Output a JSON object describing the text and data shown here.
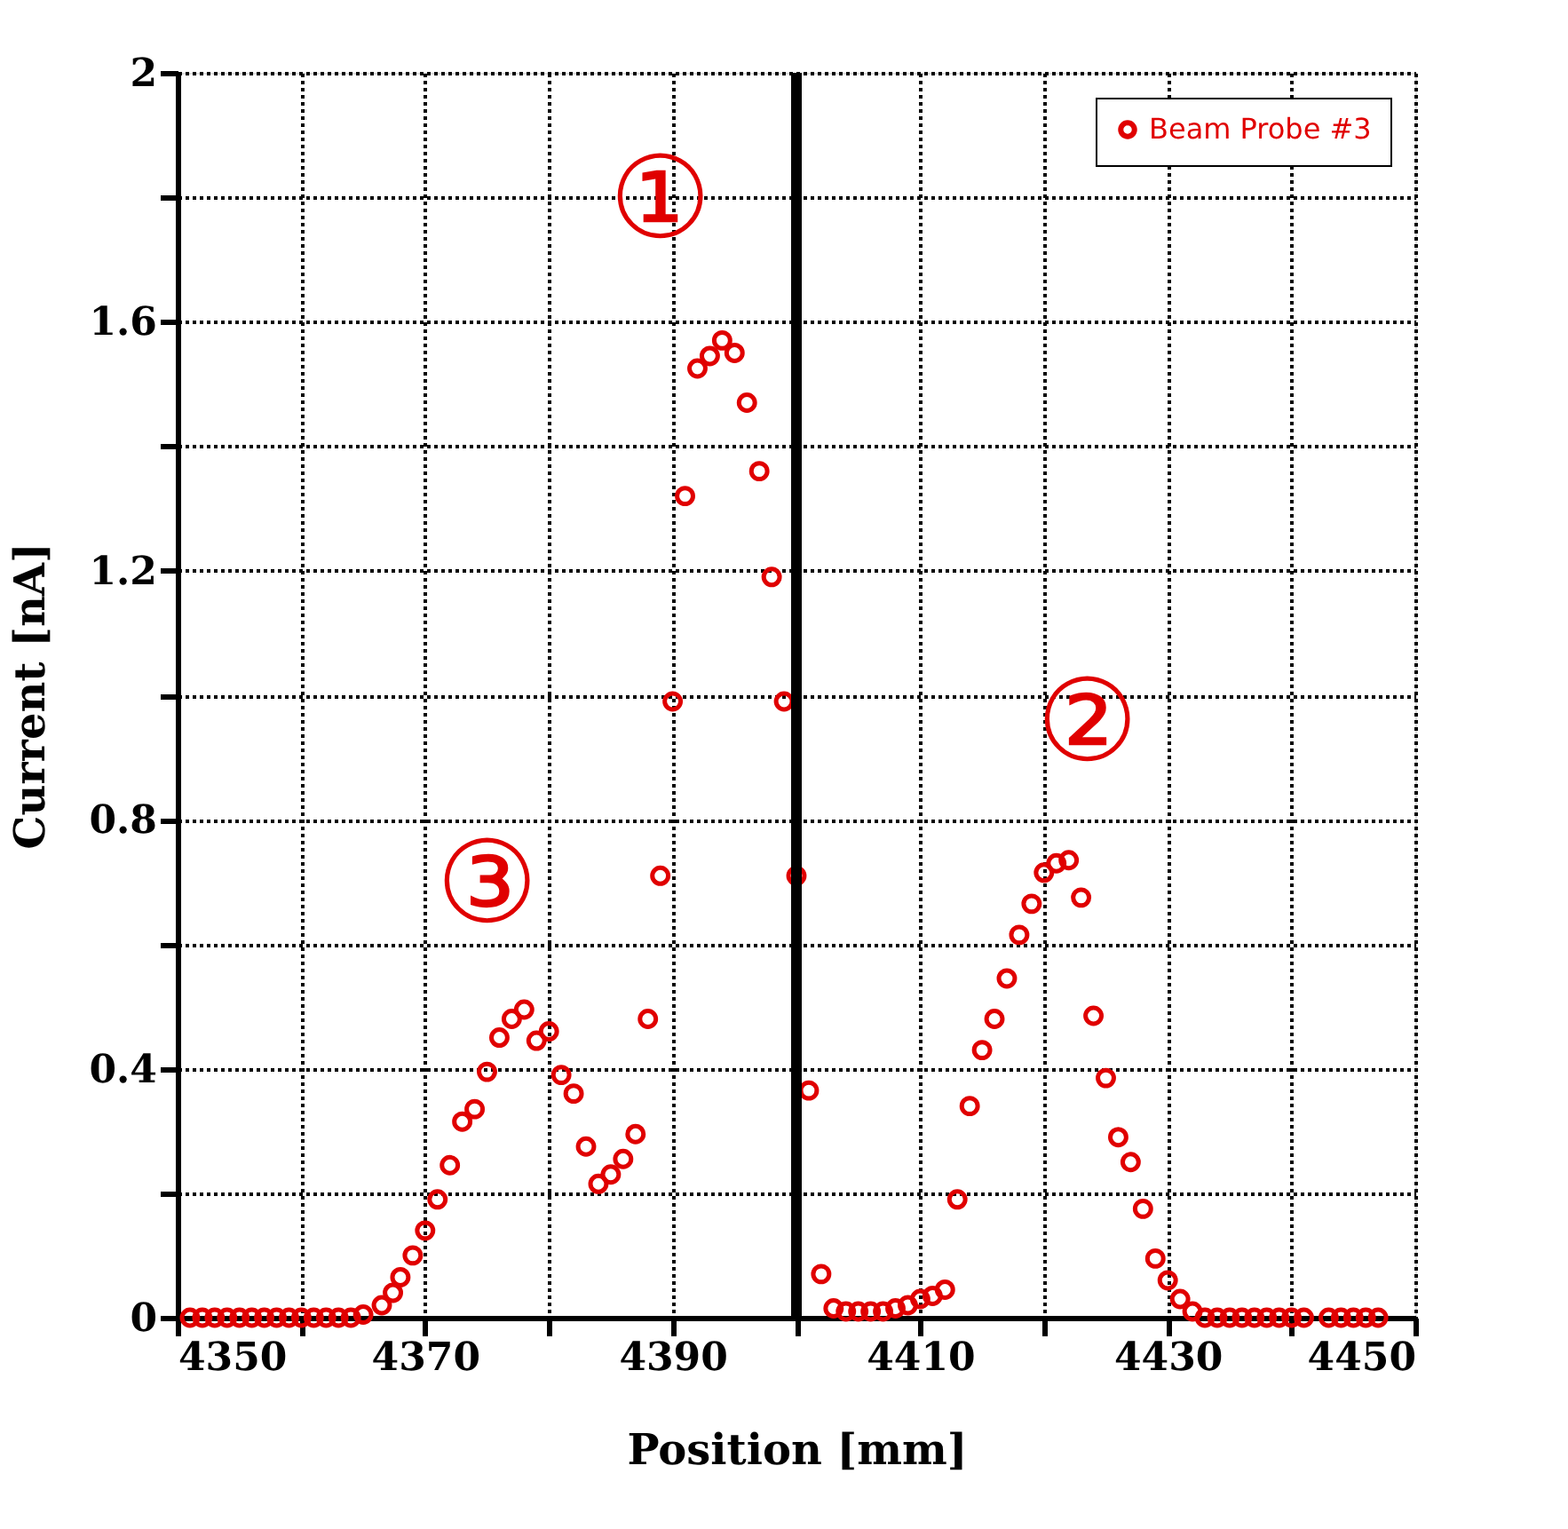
{
  "chart_data": {
    "type": "scatter",
    "xlabel": "Position [mm]",
    "ylabel": "Current [nA]",
    "x": [
      4351,
      4352,
      4353,
      4354,
      4355,
      4356,
      4357,
      4358,
      4359,
      4360,
      4361,
      4362,
      4363,
      4364,
      4365,
      4366.5,
      4367.4,
      4368,
      4369,
      4370,
      4371,
      4372,
      4373,
      4374,
      4375,
      4376,
      4377,
      4378,
      4379,
      4380,
      4381,
      4382,
      4383,
      4384,
      4385,
      4386,
      4387,
      4388,
      4389,
      4390,
      4391,
      4392,
      4393,
      4394,
      4395,
      4396,
      4397,
      4398,
      4399,
      4400,
      4401,
      4402,
      4403,
      4404,
      4405,
      4406,
      4407,
      4408,
      4409,
      4410,
      4411,
      4412,
      4413,
      4414,
      4415,
      4416,
      4417,
      4418,
      4419,
      4420,
      4421,
      4422,
      4423,
      4424,
      4425,
      4426,
      4427,
      4428,
      4429,
      4430,
      4431,
      4432,
      4433,
      4434,
      4435,
      4436,
      4437,
      4438,
      4439,
      4440,
      4441,
      4443,
      4444,
      4445,
      4446,
      4447
    ],
    "series": [
      {
        "name": "Beam Probe #3",
        "color": "#e00000",
        "values": [
          0,
          0,
          0,
          0,
          0,
          0,
          0,
          0,
          0,
          0,
          0,
          0,
          0,
          0,
          0.005,
          0.02,
          0.04,
          0.065,
          0.1,
          0.14,
          0.19,
          0.245,
          0.315,
          0.335,
          0.395,
          0.45,
          0.48,
          0.495,
          0.445,
          0.46,
          0.39,
          0.36,
          0.275,
          0.215,
          0.23,
          0.255,
          0.295,
          0.48,
          0.71,
          0.99,
          1.32,
          1.525,
          1.545,
          1.57,
          1.55,
          1.47,
          1.36,
          1.19,
          0.99,
          0.71,
          0.365,
          0.07,
          0.015,
          0.01,
          0.01,
          0.01,
          0.01,
          0.015,
          0.02,
          0.03,
          0.035,
          0.045,
          0.19,
          0.34,
          0.43,
          0.48,
          0.545,
          0.615,
          0.665,
          0.715,
          0.73,
          0.735,
          0.675,
          0.485,
          0.385,
          0.29,
          0.25,
          0.175,
          0.095,
          0.06,
          0.03,
          0.01,
          0,
          0,
          0,
          0,
          0,
          0,
          0,
          0,
          0,
          0,
          0,
          0,
          0,
          0
        ]
      }
    ],
    "xlim": [
      4350,
      4450
    ],
    "ylim": [
      0,
      2
    ],
    "xticks": [
      4350,
      {
        "value": 4360,
        "label": null
      },
      4370,
      {
        "value": 4380,
        "label": null
      },
      4390,
      {
        "value": 4400,
        "label": null
      },
      4410,
      {
        "value": 4420,
        "label": null
      },
      4430,
      {
        "value": 4440,
        "label": null
      },
      4450
    ],
    "yticks": [
      0,
      {
        "value": 0.2,
        "label": null
      },
      0.4,
      {
        "value": 0.6,
        "label": null
      },
      0.8,
      {
        "value": 1.0,
        "label": null
      },
      1.2,
      {
        "value": 1.4,
        "label": null
      },
      1.6,
      {
        "value": 1.8,
        "label": null
      },
      2
    ],
    "ref_lines": [
      {
        "axis": "x",
        "value": 4400,
        "color": "#000000"
      }
    ],
    "annotations": [
      "①",
      "②",
      "③"
    ],
    "grid": true,
    "legend": "top right",
    "marker": "circle"
  }
}
